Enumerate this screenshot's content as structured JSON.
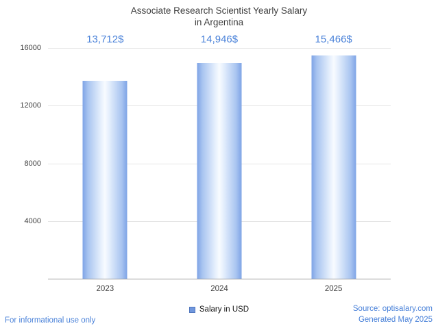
{
  "chart_data": {
    "type": "bar",
    "title_lines": [
      "Associate Research Scientist Yearly Salary",
      "in Argentina"
    ],
    "categories": [
      "2023",
      "2024",
      "2025"
    ],
    "values": [
      13712,
      14946,
      15466
    ],
    "value_labels": [
      "13,712$",
      "14,946$",
      "15,466$"
    ],
    "series_name": "Salary in USD",
    "legend": "Salary in USD",
    "xlabel": "",
    "ylabel": "",
    "ylim": [
      0,
      16000
    ],
    "yticks": [
      4000,
      8000,
      12000,
      16000
    ],
    "grid": true,
    "legend_position": "bottom-center"
  },
  "footer": {
    "disclaimer": "For informational use only",
    "source": "Source: optisalary.com",
    "generated": "Generated May 2025"
  },
  "colors": {
    "bar_edge": "#7ea4e6",
    "bar_center": "#f8fbff",
    "value_label_blue": "#4a82d9",
    "footer_blue": "#4a82d9",
    "title_gray": "#3d3d3d",
    "gridline_gray": "#e4e4e4",
    "axis_gray": "#9b9b9b"
  }
}
